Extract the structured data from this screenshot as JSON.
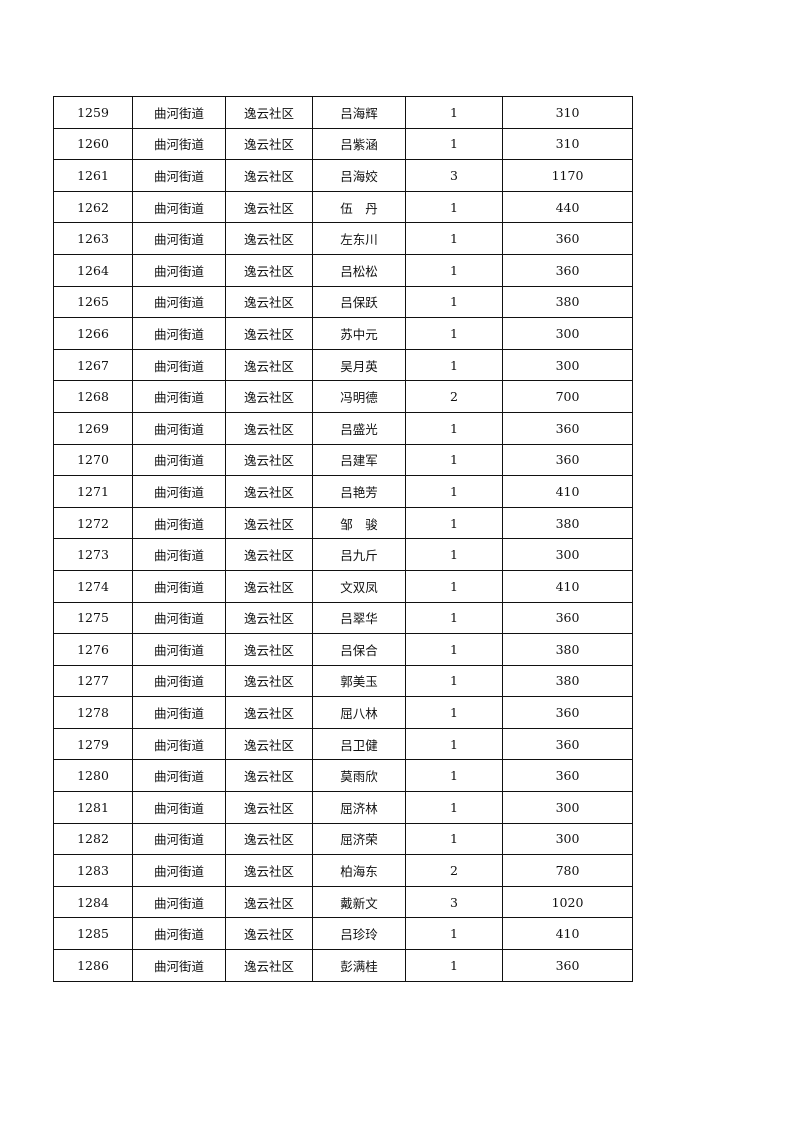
{
  "table": {
    "rows": [
      [
        "1259",
        "曲河街道",
        "逸云社区",
        "吕海辉",
        "1",
        "310"
      ],
      [
        "1260",
        "曲河街道",
        "逸云社区",
        "吕紫涵",
        "1",
        "310"
      ],
      [
        "1261",
        "曲河街道",
        "逸云社区",
        "吕海姣",
        "3",
        "1170"
      ],
      [
        "1262",
        "曲河街道",
        "逸云社区",
        "伍　丹",
        "1",
        "440"
      ],
      [
        "1263",
        "曲河街道",
        "逸云社区",
        "左东川",
        "1",
        "360"
      ],
      [
        "1264",
        "曲河街道",
        "逸云社区",
        "吕松松",
        "1",
        "360"
      ],
      [
        "1265",
        "曲河街道",
        "逸云社区",
        "吕保跃",
        "1",
        "380"
      ],
      [
        "1266",
        "曲河街道",
        "逸云社区",
        "苏中元",
        "1",
        "300"
      ],
      [
        "1267",
        "曲河街道",
        "逸云社区",
        "吴月英",
        "1",
        "300"
      ],
      [
        "1268",
        "曲河街道",
        "逸云社区",
        "冯明德",
        "2",
        "700"
      ],
      [
        "1269",
        "曲河街道",
        "逸云社区",
        "吕盛光",
        "1",
        "360"
      ],
      [
        "1270",
        "曲河街道",
        "逸云社区",
        "吕建军",
        "1",
        "360"
      ],
      [
        "1271",
        "曲河街道",
        "逸云社区",
        "吕艳芳",
        "1",
        "410"
      ],
      [
        "1272",
        "曲河街道",
        "逸云社区",
        "邹　骏",
        "1",
        "380"
      ],
      [
        "1273",
        "曲河街道",
        "逸云社区",
        "吕九斤",
        "1",
        "300"
      ],
      [
        "1274",
        "曲河街道",
        "逸云社区",
        "文双凤",
        "1",
        "410"
      ],
      [
        "1275",
        "曲河街道",
        "逸云社区",
        "吕翠华",
        "1",
        "360"
      ],
      [
        "1276",
        "曲河街道",
        "逸云社区",
        "吕保合",
        "1",
        "380"
      ],
      [
        "1277",
        "曲河街道",
        "逸云社区",
        "郭美玉",
        "1",
        "380"
      ],
      [
        "1278",
        "曲河街道",
        "逸云社区",
        "屈八林",
        "1",
        "360"
      ],
      [
        "1279",
        "曲河街道",
        "逸云社区",
        "吕卫健",
        "1",
        "360"
      ],
      [
        "1280",
        "曲河街道",
        "逸云社区",
        "莫雨欣",
        "1",
        "360"
      ],
      [
        "1281",
        "曲河街道",
        "逸云社区",
        "屈济林",
        "1",
        "300"
      ],
      [
        "1282",
        "曲河街道",
        "逸云社区",
        "屈济荣",
        "1",
        "300"
      ],
      [
        "1283",
        "曲河街道",
        "逸云社区",
        "柏海东",
        "2",
        "780"
      ],
      [
        "1284",
        "曲河街道",
        "逸云社区",
        "戴新文",
        "3",
        "1020"
      ],
      [
        "1285",
        "曲河街道",
        "逸云社区",
        "吕珍玲",
        "1",
        "410"
      ],
      [
        "1286",
        "曲河街道",
        "逸云社区",
        "彭满桂",
        "1",
        "360"
      ]
    ]
  }
}
